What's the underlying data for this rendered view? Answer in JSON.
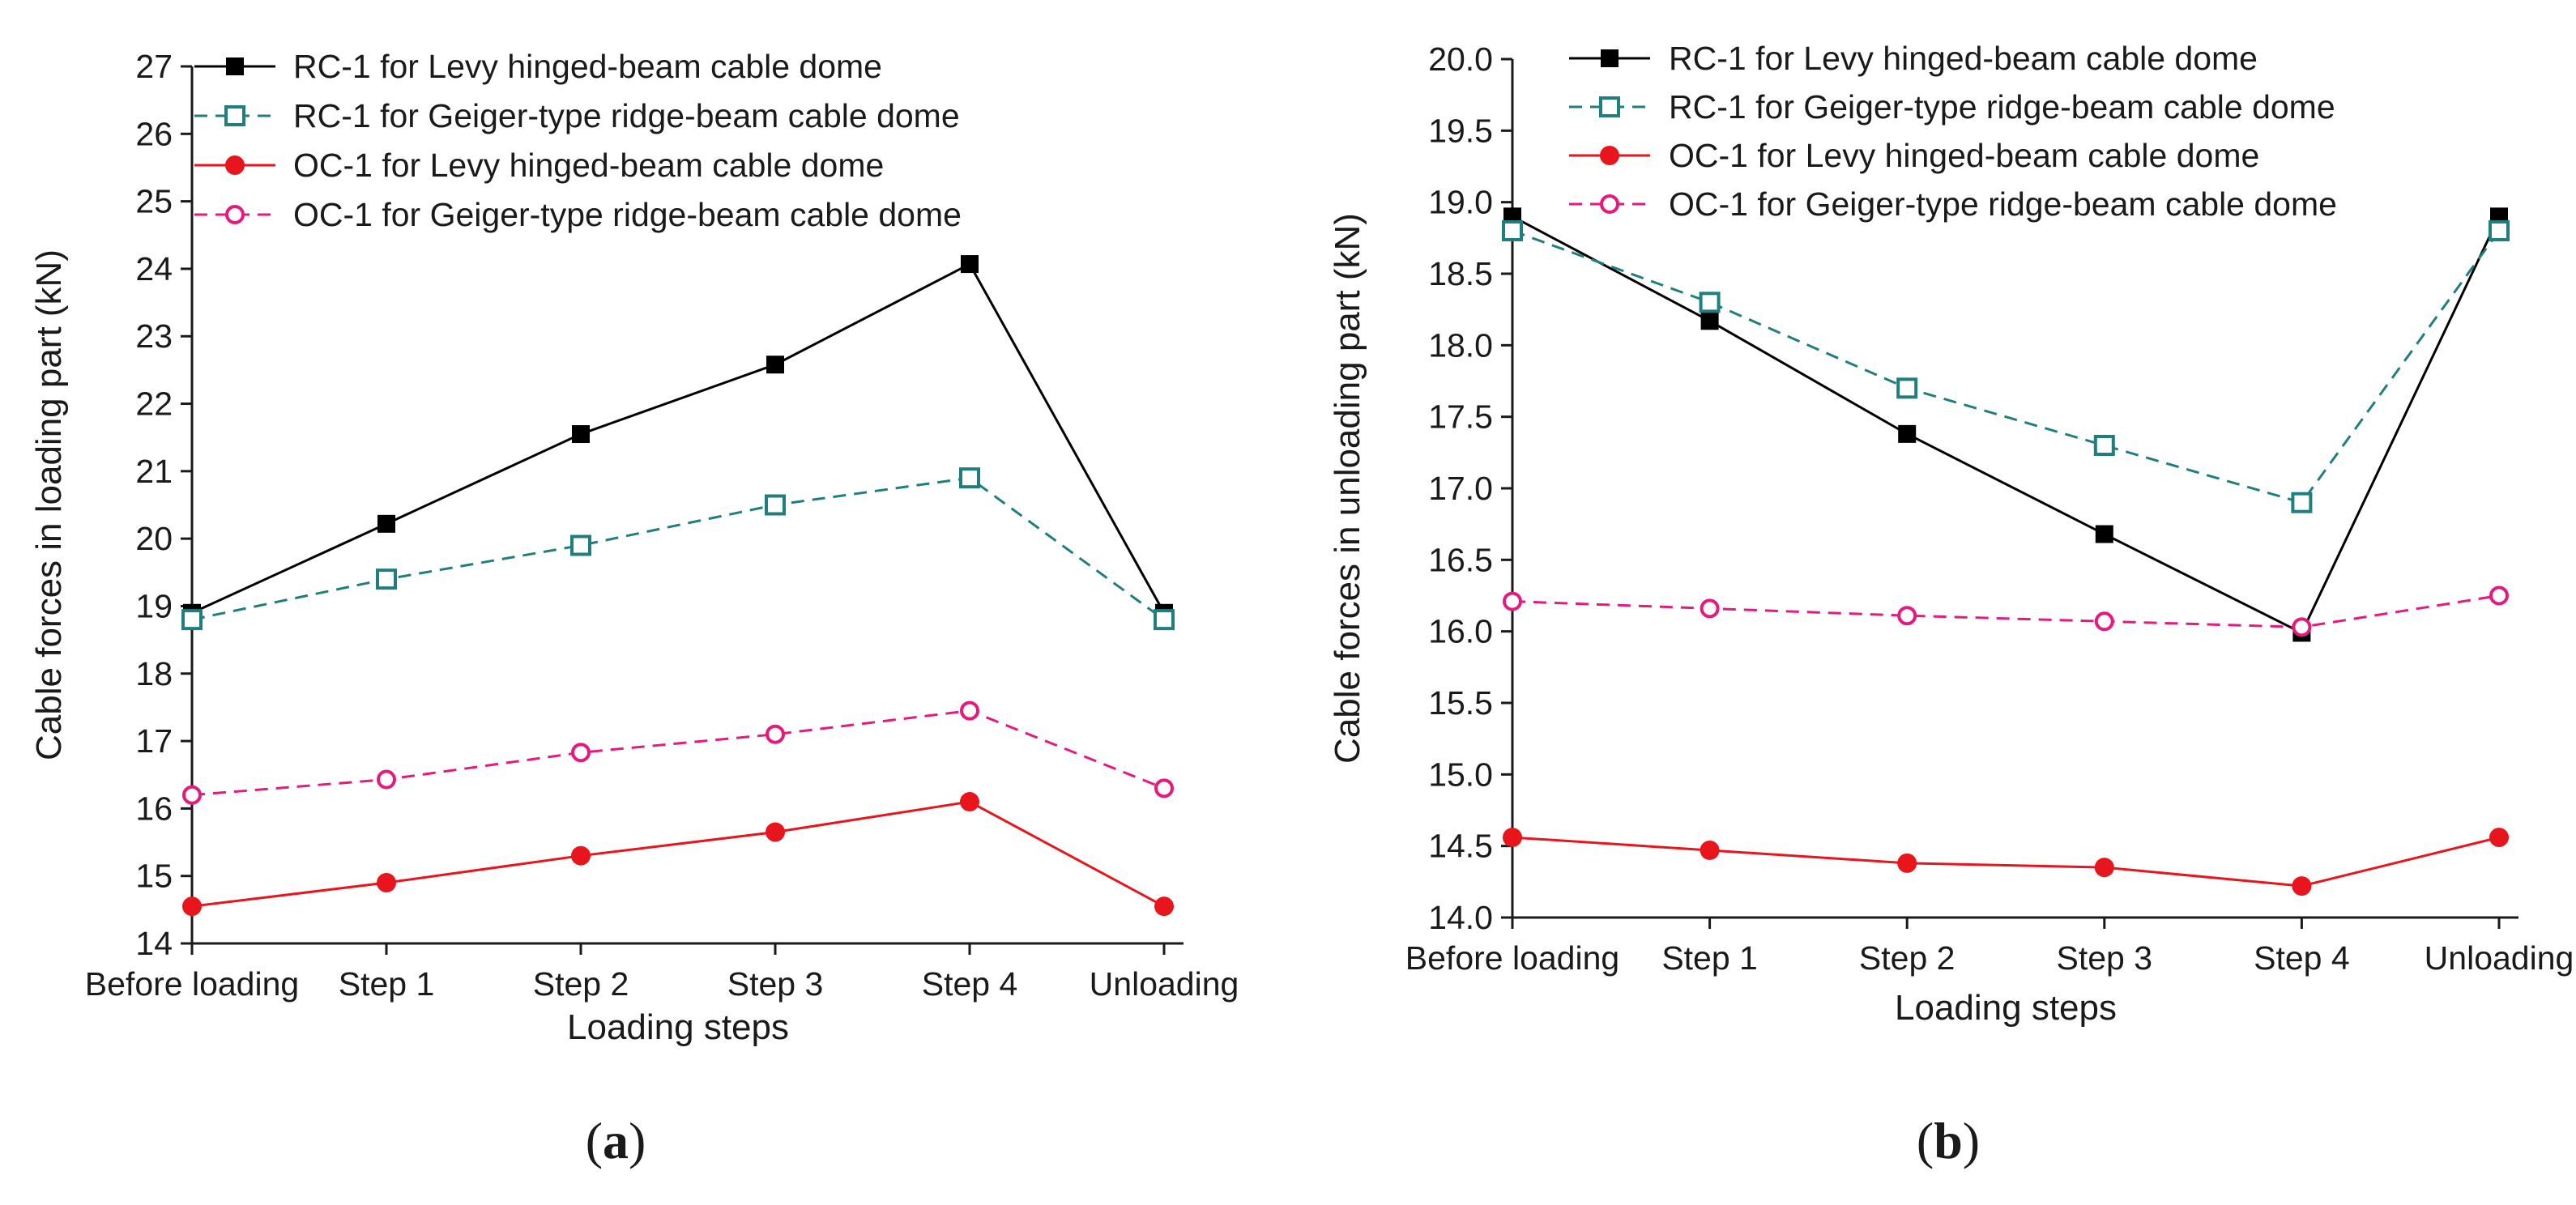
{
  "chart_data": [
    {
      "panel": "a",
      "type": "line",
      "panel_label": {
        "open": "(",
        "letter": "a",
        "close": ")"
      },
      "xlabel": "Loading steps",
      "ylabel": "Cable forces in loading part (kN)",
      "categories": [
        "Before loading",
        "Step 1",
        "Step 2",
        "Step 3",
        "Step 4",
        "Unloading"
      ],
      "ylim": [
        14,
        27
      ],
      "yticks": [
        "14",
        "15",
        "16",
        "17",
        "18",
        "19",
        "20",
        "21",
        "22",
        "23",
        "24",
        "25",
        "26",
        "27"
      ],
      "legend_position": "top-left",
      "series": [
        {
          "name": "RC-1 for Levy hinged-beam cable dome",
          "values": [
            18.9,
            20.22,
            21.55,
            22.58,
            24.07,
            18.9
          ],
          "color": "#000000",
          "dash": "solid",
          "marker": "square-filled"
        },
        {
          "name": "RC-1 for Geiger-type ridge-beam cable dome",
          "values": [
            18.8,
            19.4,
            19.9,
            20.5,
            20.9,
            18.8
          ],
          "color": "#1f7f7f",
          "dash": "dashed",
          "marker": "square-open"
        },
        {
          "name": "OC-1 for Levy hinged-beam cable dome",
          "values": [
            14.55,
            14.9,
            15.3,
            15.65,
            16.1,
            14.55
          ],
          "color": "#e8151c",
          "dash": "solid",
          "marker": "circle-filled"
        },
        {
          "name": "OC-1 for Geiger-type ridge-beam cable dome",
          "values": [
            16.2,
            16.43,
            16.83,
            17.1,
            17.45,
            16.3
          ],
          "color": "#e6197e",
          "dash": "dashed",
          "marker": "circle-open"
        }
      ]
    },
    {
      "panel": "b",
      "type": "line",
      "panel_label": {
        "open": "(",
        "letter": "b",
        "close": ")"
      },
      "xlabel": "Loading steps",
      "ylabel": "Cable forces in unloading part (kN)",
      "categories": [
        "Before loading",
        "Step 1",
        "Step 2",
        "Step 3",
        "Step 4",
        "Unloading"
      ],
      "ylim": [
        14.0,
        20.0
      ],
      "yticks": [
        "14.0",
        "14.5",
        "15.0",
        "15.5",
        "16.0",
        "16.5",
        "17.0",
        "17.5",
        "18.0",
        "18.5",
        "19.0",
        "19.5",
        "20.0"
      ],
      "legend_position": "top-right",
      "series": [
        {
          "name": "RC-1 for Levy hinged-beam cable dome",
          "values": [
            18.9,
            18.17,
            17.38,
            16.68,
            15.99,
            18.9
          ],
          "color": "#000000",
          "dash": "solid",
          "marker": "square-filled"
        },
        {
          "name": "RC-1 for Geiger-type ridge-beam cable dome",
          "values": [
            18.8,
            18.3,
            17.7,
            17.3,
            16.9,
            18.8
          ],
          "color": "#1f7f7f",
          "dash": "dashed",
          "marker": "square-open"
        },
        {
          "name": "OC-1 for Levy hinged-beam cable dome",
          "values": [
            14.56,
            14.47,
            14.38,
            14.35,
            14.22,
            14.56
          ],
          "color": "#e8151c",
          "dash": "solid",
          "marker": "circle-filled"
        },
        {
          "name": "OC-1 for Geiger-type ridge-beam cable dome",
          "values": [
            16.21,
            16.16,
            16.11,
            16.07,
            16.03,
            16.25
          ],
          "color": "#e6197e",
          "dash": "dashed",
          "marker": "circle-open"
        }
      ]
    }
  ]
}
